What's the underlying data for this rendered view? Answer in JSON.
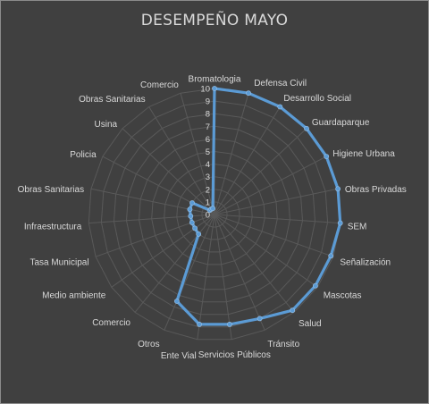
{
  "chart_data": {
    "type": "radar",
    "title": "DESEMPEÑO MAYO",
    "rlim": [
      0,
      10
    ],
    "ticks": [
      "0",
      "1",
      "2",
      "3",
      "4",
      "5",
      "6",
      "7",
      "8",
      "9",
      "10"
    ],
    "grid": true,
    "legend": "none",
    "colors": {
      "background": "#404040",
      "grid": "#595959",
      "line": "#5b9bd5",
      "text": "#d9d9d9"
    },
    "categories": [
      "Bromatologia",
      "Defensa Civil",
      "Desarrollo Social",
      "Guardaparque",
      "Higiene Urbana",
      "Obras Privadas",
      "SEM",
      "Señalización",
      "Mascotas",
      "Salud",
      "Tránsito",
      "Servicios Públicos",
      "Ente Vial",
      "Otros",
      "Comercio",
      "Medio ambiente",
      "Tasa Municipal",
      "Infraestructura",
      "Obras Sanitarias",
      "Policia",
      "Usina",
      "Obras Sanitarias",
      "Comercio"
    ],
    "series": [
      {
        "values": [
          10,
          10,
          10,
          10,
          10,
          10,
          10,
          9.8,
          9.8,
          9.8,
          9,
          8.8,
          8.8,
          7.5,
          2,
          1.9,
          1.9,
          1.9,
          2,
          2,
          0.5,
          0.5,
          0.5
        ]
      }
    ]
  }
}
